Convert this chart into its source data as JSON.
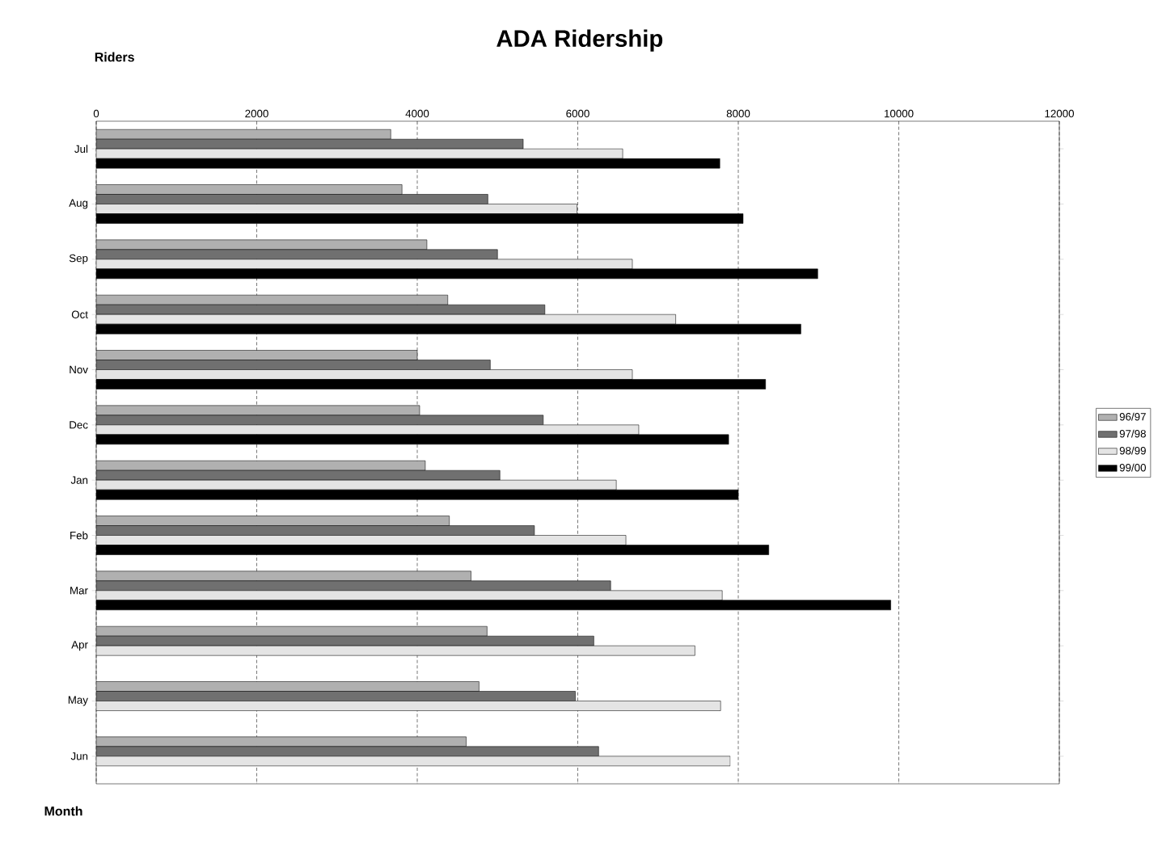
{
  "chart_data": {
    "type": "bar",
    "orientation": "horizontal",
    "title": "ADA Ridership",
    "xlabel": "Riders",
    "ylabel": "Month",
    "categories": [
      "Jul",
      "Aug",
      "Sep",
      "Oct",
      "Nov",
      "Dec",
      "Jan",
      "Feb",
      "Mar",
      "Apr",
      "May",
      "Jun"
    ],
    "series": [
      {
        "name": "96/97",
        "color": "#b0b0b0",
        "values": [
          3670,
          3810,
          4120,
          4380,
          4000,
          4030,
          4100,
          4400,
          4670,
          4870,
          4770,
          4610
        ]
      },
      {
        "name": "97/98",
        "color": "#707070",
        "values": [
          5320,
          4880,
          5000,
          5590,
          4910,
          5570,
          5030,
          5460,
          6410,
          6200,
          5970,
          6260
        ]
      },
      {
        "name": "98/99",
        "color": "#e4e4e4",
        "values": [
          6560,
          5990,
          6680,
          7220,
          6680,
          6760,
          6480,
          6600,
          7800,
          7460,
          7780,
          7900
        ]
      },
      {
        "name": "99/00",
        "color": "#000000",
        "values": [
          7770,
          8060,
          8990,
          8780,
          8340,
          7880,
          8000,
          8380,
          9900,
          null,
          null,
          null
        ]
      }
    ],
    "xlim": [
      0,
      12000
    ],
    "xticks": [
      0,
      2000,
      4000,
      6000,
      8000,
      10000,
      12000
    ],
    "grid": "x",
    "legend": "right"
  }
}
